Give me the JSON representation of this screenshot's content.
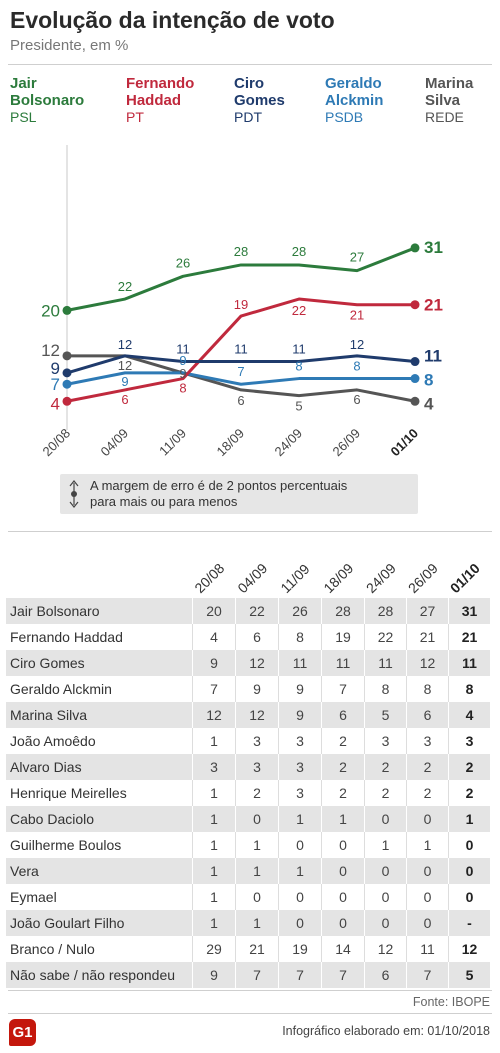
{
  "chart_data": {
    "type": "line",
    "title": "Evolução da intenção de voto",
    "subtitle": "Presidente, em %",
    "categories": [
      "20/08",
      "04/09",
      "11/09",
      "18/09",
      "24/09",
      "26/09",
      "01/10"
    ],
    "ylim": [
      0,
      50
    ],
    "grid": false,
    "legend_position": "top",
    "series": [
      {
        "name": "Jair Bolsonaro",
        "party": "PSL",
        "color": "#2c7b3c",
        "values": [
          20,
          22,
          26,
          28,
          28,
          27,
          31
        ]
      },
      {
        "name": "Fernando Haddad",
        "party": "PT",
        "color": "#c0293d",
        "values": [
          4,
          6,
          8,
          19,
          22,
          21,
          21
        ]
      },
      {
        "name": "Ciro Gomes",
        "party": "PDT",
        "color": "#1f3b6c",
        "values": [
          9,
          12,
          11,
          11,
          11,
          12,
          11
        ]
      },
      {
        "name": "Geraldo Alckmin",
        "party": "PSDB",
        "color": "#2e7ab5",
        "values": [
          7,
          9,
          9,
          7,
          8,
          8,
          8
        ]
      },
      {
        "name": "Marina Silva",
        "party": "REDE",
        "color": "#555555",
        "values": [
          12,
          12,
          9,
          6,
          5,
          6,
          4
        ]
      }
    ]
  },
  "note": {
    "icon": "up-down-arrow-icon",
    "line1": "A margem de erro é de 2 pontos percentuais",
    "line2": "para mais ou para menos"
  },
  "table": {
    "columns": [
      "20/08",
      "04/09",
      "11/09",
      "18/09",
      "24/09",
      "26/09",
      "01/10"
    ],
    "rows": [
      {
        "name": "Jair Bolsonaro",
        "values": [
          20,
          22,
          26,
          28,
          28,
          27,
          31
        ]
      },
      {
        "name": "Fernando Haddad",
        "values": [
          4,
          6,
          8,
          19,
          22,
          21,
          21
        ]
      },
      {
        "name": "Ciro Gomes",
        "values": [
          9,
          12,
          11,
          11,
          11,
          12,
          11
        ]
      },
      {
        "name": "Geraldo Alckmin",
        "values": [
          7,
          9,
          9,
          7,
          8,
          8,
          8
        ]
      },
      {
        "name": "Marina Silva",
        "values": [
          12,
          12,
          9,
          6,
          5,
          6,
          4
        ]
      },
      {
        "name": "João Amoêdo",
        "values": [
          1,
          3,
          3,
          2,
          3,
          3,
          3
        ]
      },
      {
        "name": "Alvaro Dias",
        "values": [
          3,
          3,
          3,
          2,
          2,
          2,
          2
        ]
      },
      {
        "name": "Henrique Meirelles",
        "values": [
          1,
          2,
          3,
          2,
          2,
          2,
          2
        ]
      },
      {
        "name": "Cabo Daciolo",
        "values": [
          1,
          0,
          1,
          1,
          0,
          0,
          1
        ]
      },
      {
        "name": "Guilherme Boulos",
        "values": [
          1,
          1,
          0,
          0,
          1,
          1,
          0
        ]
      },
      {
        "name": "Vera",
        "values": [
          1,
          1,
          1,
          0,
          0,
          0,
          0
        ]
      },
      {
        "name": "Eymael",
        "values": [
          1,
          0,
          0,
          0,
          0,
          0,
          0
        ]
      },
      {
        "name": "João Goulart Filho",
        "values": [
          1,
          1,
          0,
          0,
          0,
          0,
          "-"
        ]
      },
      {
        "name": "Branco / Nulo",
        "values": [
          29,
          21,
          19,
          14,
          12,
          11,
          12
        ]
      },
      {
        "name": "Não sabe / não respondeu",
        "values": [
          9,
          7,
          7,
          7,
          6,
          7,
          5
        ]
      }
    ]
  },
  "footer": {
    "source": "Fonte: IBOPE",
    "logo_text": "G1",
    "logo_color": "#c4170c",
    "credit": "Infográfico elaborado em: 01/10/2018"
  }
}
